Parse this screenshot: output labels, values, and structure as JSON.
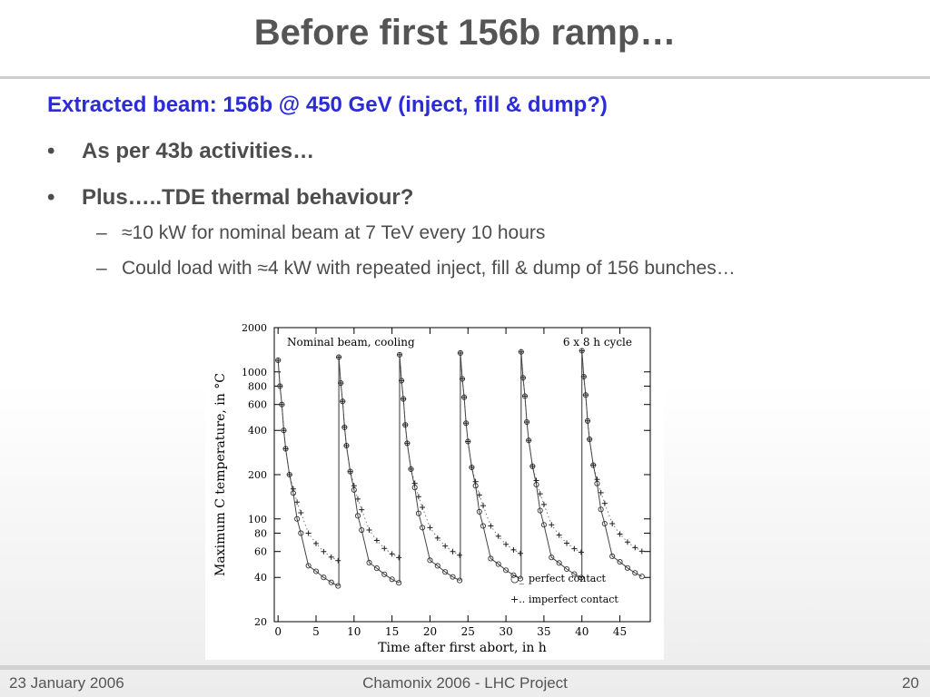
{
  "slide": {
    "title": "Before first 156b ramp…",
    "subtitle": "Extracted beam: 156b @ 450 GeV (inject, fill & dump?)",
    "bullets": [
      {
        "marker": "•",
        "text": "As per 43b activities…"
      },
      {
        "marker": "•",
        "text": "Plus…..TDE thermal behaviour?"
      }
    ],
    "subbullets": [
      {
        "marker": "–",
        "text": "≈10 kW for nominal beam at 7 TeV every 10 hours"
      },
      {
        "marker": "–",
        "text": "Could load with ≈4 kW with repeated inject, fill & dump of 156 bunches…"
      }
    ]
  },
  "footer": {
    "date": "23 January 2006",
    "event": "Chamonix 2006 - LHC Project",
    "page": "20"
  },
  "chart_data": {
    "type": "line",
    "title": "",
    "annotation_left": "Nominal beam, cooling",
    "annotation_right": "6 x 8 h cycle",
    "xlabel": "Time after first abort, in h",
    "ylabel": "Maximum C temperature, in °C",
    "xlim": [
      -0.5,
      49
    ],
    "ylim": [
      20,
      2000
    ],
    "yscale": "log",
    "xticks": [
      0,
      5,
      10,
      15,
      20,
      25,
      30,
      35,
      40,
      45
    ],
    "yticks": [
      20,
      40,
      60,
      80,
      100,
      200,
      400,
      600,
      800,
      1000,
      2000
    ],
    "cycle_starts": [
      0,
      8,
      16,
      24,
      32,
      40
    ],
    "cycle_length_h": 8,
    "series": [
      {
        "name": "perfect contact",
        "legend_marker": "○_",
        "marker": "circle",
        "line": "solid",
        "t": [
          0,
          0.25,
          0.5,
          0.75,
          1,
          1.5,
          2,
          2.5,
          3,
          4,
          5,
          6,
          7,
          7.9
        ],
        "y": [
          1200,
          800,
          600,
          400,
          300,
          200,
          150,
          100,
          80,
          48,
          44,
          40,
          37,
          35
        ]
      },
      {
        "name": "imperfect contact",
        "legend_marker": "+..",
        "marker": "plus",
        "line": "dotted",
        "t": [
          0,
          0.25,
          0.5,
          0.75,
          1,
          1.5,
          2,
          2.5,
          3,
          4,
          5,
          6,
          7,
          7.9
        ],
        "y": [
          1200,
          800,
          600,
          400,
          300,
          200,
          160,
          130,
          110,
          80,
          68,
          60,
          55,
          52
        ]
      }
    ],
    "offset_per_cycle": [
      1.0,
      1.05,
      1.09,
      1.12,
      1.14,
      1.16
    ]
  }
}
